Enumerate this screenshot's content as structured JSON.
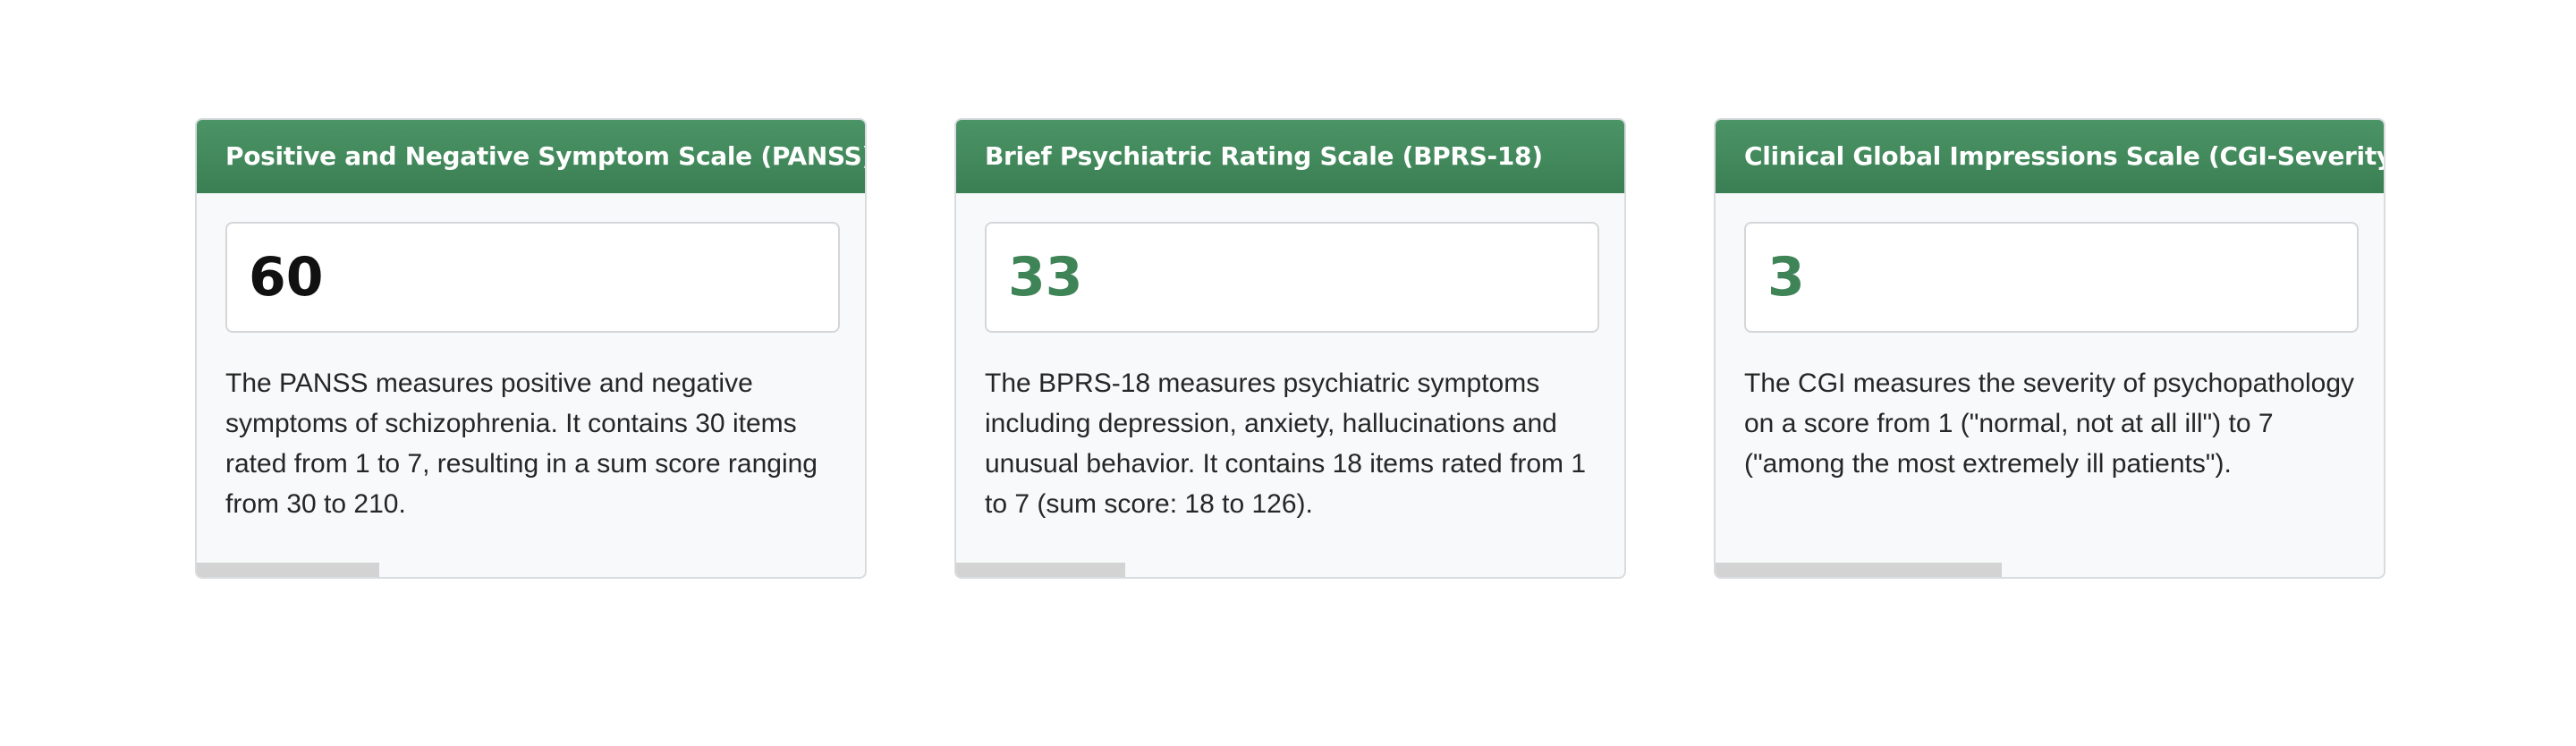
{
  "cards": [
    {
      "title": "Positive and Negative Symptom Scale (PANSS)",
      "score": "60",
      "description": "The PANSS measures positive and negative symptoms of schizophrenia. It contains 30 items rated from 1 to 7, resulting in a sum score ranging from 30 to 210.",
      "progress_fraction": 0.273
    },
    {
      "title": "Brief Psychiatric Rating Scale (BPRS-18)",
      "score": "33",
      "description": "The BPRS-18 measures psychiatric symptoms including depression, anxiety, hallucinations and unusual behavior. It contains 18 items rated from 1 to 7 (sum score: 18 to 126).",
      "progress_fraction": 0.253
    },
    {
      "title": "Clinical Global Impressions Scale (CGI-Severity)",
      "score": "3",
      "description": "The CGI measures the severity of psychopathology on a score from 1 (\"normal, not at all ill\") to 7 (\"among the most extremely ill patients\").",
      "progress_fraction": 0.428
    }
  ],
  "colors": {
    "header_green": "#3f8457",
    "score_accent": "#3f8457",
    "card_background": "#f8f9fa",
    "progress_gray": "#d3d3d3"
  }
}
